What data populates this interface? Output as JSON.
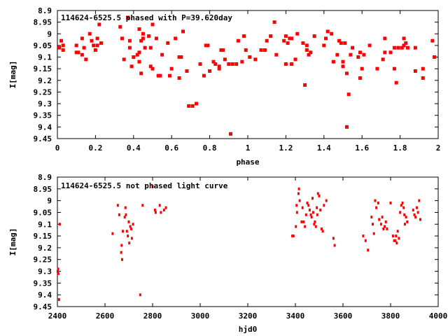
{
  "chart_data": [
    {
      "type": "scatter",
      "title": "114624-6525.5 phased with P=39.620day",
      "xlabel": "phase",
      "ylabel": "I[mag]",
      "xlim": [
        0,
        2
      ],
      "ylim": [
        8.9,
        9.45
      ],
      "y_inverted": true,
      "grid": false,
      "xticks": [
        "0",
        "0.2",
        "0.4",
        "0.6",
        "0.8",
        "1",
        "1.2",
        "1.4",
        "1.6",
        "1.8",
        "2"
      ],
      "xtick_values": [
        0,
        0.2,
        0.4,
        0.6,
        0.8,
        1,
        1.2,
        1.4,
        1.6,
        1.8,
        2
      ],
      "yticks": [
        "8.9",
        "8.95",
        "9",
        "9.05",
        "9.1",
        "9.15",
        "9.2",
        "9.25",
        "9.3",
        "9.35",
        "9.4",
        "9.45"
      ],
      "ytick_values": [
        8.9,
        8.95,
        9.0,
        9.05,
        9.1,
        9.15,
        9.2,
        9.25,
        9.3,
        9.35,
        9.4,
        9.45
      ],
      "marker": "large",
      "color": "#ff0000",
      "points": [
        [
          0.01,
          9.06
        ],
        [
          0.02,
          9.03
        ],
        [
          0.03,
          9.07
        ],
        [
          0.03,
          9.05
        ],
        [
          0.1,
          9.08
        ],
        [
          0.1,
          9.05
        ],
        [
          0.11,
          9.08
        ],
        [
          0.13,
          9.02
        ],
        [
          0.13,
          9.09
        ],
        [
          0.14,
          9.06
        ],
        [
          0.15,
          9.11
        ],
        [
          0.17,
          9.0
        ],
        [
          0.18,
          9.03
        ],
        [
          0.19,
          9.05
        ],
        [
          0.2,
          9.07
        ],
        [
          0.21,
          9.05
        ],
        [
          0.21,
          9.02
        ],
        [
          0.22,
          8.96
        ],
        [
          0.23,
          9.04
        ],
        [
          0.33,
          8.97
        ],
        [
          0.34,
          9.02
        ],
        [
          0.35,
          9.11
        ],
        [
          0.37,
          8.93
        ],
        [
          0.38,
          9.03
        ],
        [
          0.38,
          9.06
        ],
        [
          0.39,
          9.14
        ],
        [
          0.4,
          9.1
        ],
        [
          0.42,
          9.09
        ],
        [
          0.43,
          9.08
        ],
        [
          0.43,
          9.12
        ],
        [
          0.43,
          8.98
        ],
        [
          0.44,
          9.03
        ],
        [
          0.44,
          9.17
        ],
        [
          0.45,
          9.0
        ],
        [
          0.45,
          9.02
        ],
        [
          0.46,
          9.06
        ],
        [
          0.48,
          9.01
        ],
        [
          0.49,
          9.06
        ],
        [
          0.49,
          9.14
        ],
        [
          0.5,
          8.96
        ],
        [
          0.5,
          9.15
        ],
        [
          0.52,
          9.02
        ],
        [
          0.53,
          9.18
        ],
        [
          0.54,
          9.18
        ],
        [
          0.55,
          9.09
        ],
        [
          0.58,
          9.04
        ],
        [
          0.59,
          9.18
        ],
        [
          0.6,
          9.15
        ],
        [
          0.62,
          9.02
        ],
        [
          0.64,
          9.19
        ],
        [
          0.64,
          9.1
        ],
        [
          0.65,
          9.1
        ],
        [
          0.66,
          8.99
        ],
        [
          0.68,
          9.16
        ],
        [
          0.69,
          9.31
        ],
        [
          0.71,
          9.31
        ],
        [
          0.73,
          9.3
        ],
        [
          0.75,
          9.13
        ],
        [
          0.77,
          9.18
        ],
        [
          0.78,
          9.05
        ],
        [
          0.79,
          9.05
        ],
        [
          0.8,
          9.16
        ],
        [
          0.82,
          9.12
        ],
        [
          0.83,
          9.13
        ],
        [
          0.85,
          9.15
        ],
        [
          0.85,
          9.14
        ],
        [
          0.86,
          9.07
        ],
        [
          0.87,
          9.07
        ],
        [
          0.88,
          9.11
        ],
        [
          0.9,
          9.13
        ],
        [
          0.91,
          9.43
        ],
        [
          0.92,
          9.13
        ],
        [
          0.94,
          9.13
        ],
        [
          0.95,
          9.03
        ],
        [
          0.97,
          9.12
        ],
        [
          0.98,
          9.01
        ],
        [
          0.99,
          9.07
        ],
        [
          1.01,
          9.1
        ],
        [
          1.04,
          9.11
        ],
        [
          1.07,
          9.07
        ],
        [
          1.09,
          9.07
        ],
        [
          1.1,
          9.03
        ],
        [
          1.12,
          9.01
        ],
        [
          1.14,
          8.95
        ],
        [
          1.15,
          9.09
        ],
        [
          1.19,
          9.03
        ],
        [
          1.2,
          9.01
        ],
        [
          1.2,
          9.13
        ],
        [
          1.21,
          9.04
        ],
        [
          1.22,
          9.02
        ],
        [
          1.23,
          9.13
        ],
        [
          1.23,
          9.02
        ],
        [
          1.25,
          9.11
        ],
        [
          1.26,
          9.0
        ],
        [
          1.29,
          9.04
        ],
        [
          1.3,
          9.22
        ],
        [
          1.31,
          9.05
        ],
        [
          1.31,
          9.07
        ],
        [
          1.32,
          9.09
        ],
        [
          1.33,
          9.08
        ],
        [
          1.35,
          9.01
        ],
        [
          1.4,
          9.05
        ],
        [
          1.41,
          9.02
        ],
        [
          1.42,
          8.99
        ],
        [
          1.44,
          9.0
        ],
        [
          1.45,
          9.12
        ],
        [
          1.47,
          9.09
        ],
        [
          1.48,
          9.03
        ],
        [
          1.49,
          9.04
        ],
        [
          1.5,
          9.12
        ],
        [
          1.5,
          9.14
        ],
        [
          1.51,
          9.04
        ],
        [
          1.52,
          9.4
        ],
        [
          1.52,
          9.17
        ],
        [
          1.53,
          9.26
        ],
        [
          1.54,
          9.09
        ],
        [
          1.55,
          9.06
        ],
        [
          1.58,
          9.1
        ],
        [
          1.59,
          9.19
        ],
        [
          1.59,
          9.08
        ],
        [
          1.6,
          9.15
        ],
        [
          1.61,
          9.09
        ],
        [
          1.64,
          9.05
        ],
        [
          1.68,
          9.15
        ],
        [
          1.71,
          9.11
        ],
        [
          1.72,
          9.02
        ],
        [
          1.72,
          9.08
        ],
        [
          1.75,
          9.08
        ],
        [
          1.77,
          9.06
        ],
        [
          1.78,
          9.21
        ],
        [
          1.77,
          9.15
        ],
        [
          1.79,
          9.06
        ],
        [
          1.81,
          9.06
        ],
        [
          1.82,
          9.02
        ],
        [
          1.82,
          9.05
        ],
        [
          1.83,
          9.04
        ],
        [
          1.84,
          9.06
        ],
        [
          1.88,
          9.06
        ],
        [
          1.88,
          9.16
        ],
        [
          1.92,
          9.15
        ],
        [
          1.92,
          9.19
        ],
        [
          1.97,
          9.03
        ],
        [
          1.98,
          9.1
        ]
      ]
    },
    {
      "type": "scatter",
      "title": "114624-6525.5 not phased light curve",
      "xlabel": "hjd0",
      "ylabel": "I[mag]",
      "xlim": [
        2400,
        4000
      ],
      "ylim": [
        8.9,
        9.45
      ],
      "y_inverted": true,
      "grid": false,
      "xticks": [
        "2400",
        "2600",
        "2800",
        "3000",
        "3200",
        "3400",
        "3600",
        "3800",
        "4000"
      ],
      "xtick_values": [
        2400,
        2600,
        2800,
        3000,
        3200,
        3400,
        3600,
        3800,
        4000
      ],
      "yticks": [
        "8.9",
        "8.95",
        "9",
        "9.05",
        "9.1",
        "9.15",
        "9.2",
        "9.25",
        "9.3",
        "9.35",
        "9.4",
        "9.45"
      ],
      "ytick_values": [
        8.9,
        8.95,
        9.0,
        9.05,
        9.1,
        9.15,
        9.2,
        9.25,
        9.3,
        9.35,
        9.4,
        9.45
      ],
      "marker": "small",
      "color": "#ff0000",
      "points": [
        [
          2401,
          9.3
        ],
        [
          2403,
          9.29
        ],
        [
          2404,
          9.31
        ],
        [
          2407,
          9.42
        ],
        [
          2410,
          9.1
        ],
        [
          2632,
          9.14
        ],
        [
          2654,
          9.02
        ],
        [
          2660,
          9.06
        ],
        [
          2668,
          9.22
        ],
        [
          2670,
          9.19
        ],
        [
          2672,
          9.25
        ],
        [
          2675,
          9.13
        ],
        [
          2683,
          9.07
        ],
        [
          2686,
          9.03
        ],
        [
          2688,
          9.06
        ],
        [
          2692,
          9.13
        ],
        [
          2696,
          9.15
        ],
        [
          2700,
          9.09
        ],
        [
          2702,
          9.18
        ],
        [
          2706,
          9.11
        ],
        [
          2710,
          9.12
        ],
        [
          2713,
          9.16
        ],
        [
          2718,
          9.1
        ],
        [
          2748,
          9.4
        ],
        [
          2758,
          9.02
        ],
        [
          2800,
          8.94
        ],
        [
          2810,
          9.04
        ],
        [
          2813,
          9.05
        ],
        [
          2830,
          9.02
        ],
        [
          2835,
          9.05
        ],
        [
          2848,
          9.04
        ],
        [
          2856,
          9.03
        ],
        [
          3387,
          9.15
        ],
        [
          3392,
          9.15
        ],
        [
          3402,
          9.11
        ],
        [
          3405,
          9.02
        ],
        [
          3407,
          9.05
        ],
        [
          3413,
          8.97
        ],
        [
          3415,
          8.95
        ],
        [
          3418,
          9.0
        ],
        [
          3426,
          9.09
        ],
        [
          3430,
          9.03
        ],
        [
          3435,
          9.09
        ],
        [
          3440,
          9.11
        ],
        [
          3445,
          9.06
        ],
        [
          3450,
          9.01
        ],
        [
          3455,
          9.02
        ],
        [
          3460,
          9.04
        ],
        [
          3465,
          9.06
        ],
        [
          3468,
          9.07
        ],
        [
          3472,
          8.99
        ],
        [
          3475,
          9.05
        ],
        [
          3479,
          9.1
        ],
        [
          3482,
          9.09
        ],
        [
          3486,
          9.11
        ],
        [
          3490,
          9.03
        ],
        [
          3492,
          9.06
        ],
        [
          3495,
          8.97
        ],
        [
          3500,
          8.98
        ],
        [
          3505,
          9.04
        ],
        [
          3510,
          9.12
        ],
        [
          3515,
          9.13
        ],
        [
          3520,
          9.02
        ],
        [
          3530,
          9.0
        ],
        [
          3560,
          9.16
        ],
        [
          3565,
          9.19
        ],
        [
          3685,
          9.15
        ],
        [
          3695,
          9.17
        ],
        [
          3705,
          9.21
        ],
        [
          3720,
          9.07
        ],
        [
          3725,
          9.1
        ],
        [
          3730,
          9.14
        ],
        [
          3735,
          9.0
        ],
        [
          3740,
          9.03
        ],
        [
          3748,
          9.01
        ],
        [
          3752,
          9.08
        ],
        [
          3760,
          9.1
        ],
        [
          3765,
          9.07
        ],
        [
          3770,
          9.12
        ],
        [
          3775,
          9.11
        ],
        [
          3780,
          9.09
        ],
        [
          3785,
          9.12
        ],
        [
          3800,
          9.01
        ],
        [
          3810,
          9.15
        ],
        [
          3815,
          9.17
        ],
        [
          3820,
          9.17
        ],
        [
          3823,
          9.15
        ],
        [
          3826,
          9.18
        ],
        [
          3830,
          9.13
        ],
        [
          3835,
          9.16
        ],
        [
          3840,
          9.05
        ],
        [
          3845,
          9.02
        ],
        [
          3850,
          9.01
        ],
        [
          3855,
          9.03
        ],
        [
          3858,
          9.06
        ],
        [
          3860,
          9.1
        ],
        [
          3865,
          9.07
        ],
        [
          3870,
          9.09
        ],
        [
          3895,
          9.04
        ],
        [
          3900,
          9.06
        ],
        [
          3905,
          9.07
        ],
        [
          3910,
          9.03
        ],
        [
          3915,
          9.05
        ],
        [
          3920,
          9.0
        ],
        [
          3925,
          9.08
        ]
      ]
    }
  ]
}
